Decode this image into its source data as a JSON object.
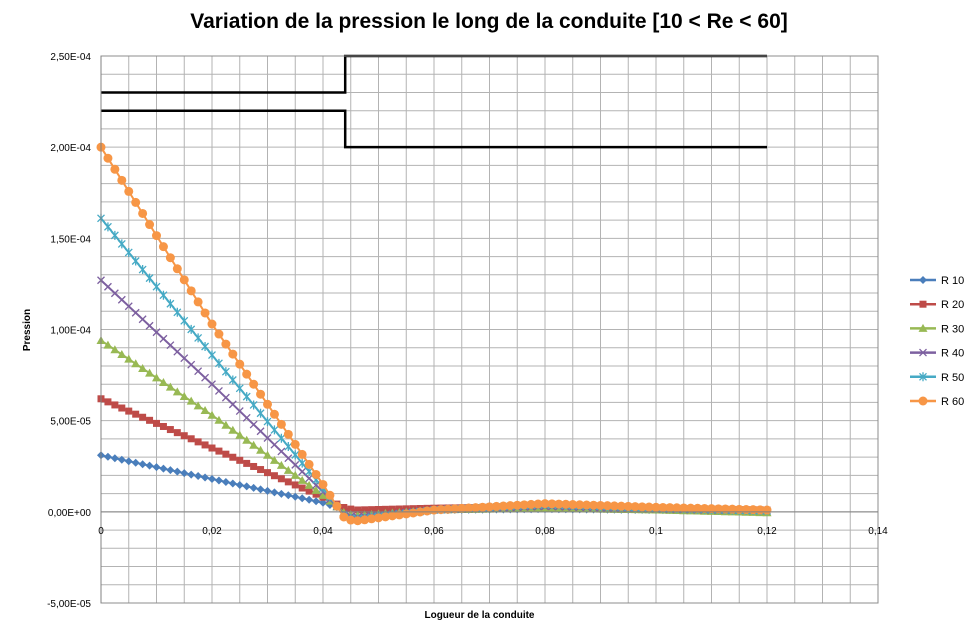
{
  "chart_data": {
    "type": "line",
    "title": "Variation de la pression le long de la conduite [10 < Re < 60]",
    "xlabel": "Logueur de la conduite",
    "ylabel": "Pression",
    "xlim": [
      0,
      0.14
    ],
    "ylim": [
      -5e-05,
      0.00025
    ],
    "x_ticks": [
      "0",
      "0,02",
      "0,04",
      "0,06",
      "0,08",
      "0,1",
      "0,12",
      "0,14"
    ],
    "y_ticks": [
      "2,50E-04",
      "2,00E-04",
      "1,50E-04",
      "1,00E-04",
      "5,00E-05",
      "0,00E+00",
      "-5,00E-05"
    ],
    "grid": true,
    "legend_position": "right",
    "outlines": [
      {
        "x": [
          0,
          0.044,
          0.044,
          0.12
        ],
        "y": [
          0.00023,
          0.00023,
          0.00025,
          0.00025
        ]
      },
      {
        "x": [
          0,
          0.044,
          0.044,
          0.12
        ],
        "y": [
          0.00022,
          0.00022,
          0.0002,
          0.0002
        ]
      }
    ],
    "series": [
      {
        "name": "R 10",
        "color": "#4a7ebb",
        "marker": "diamond",
        "x": [
          0,
          0.02,
          0.04,
          0.044,
          0.046,
          0.06,
          0.08,
          0.1,
          0.12
        ],
        "y": [
          3.1e-05,
          1.8e-05,
          5e-06,
          1e-06,
          5e-07,
          1e-06,
          1.5e-06,
          1e-06,
          5e-07
        ]
      },
      {
        "name": "R 20",
        "color": "#be4b48",
        "marker": "square",
        "x": [
          0,
          0.02,
          0.04,
          0.044,
          0.046,
          0.06,
          0.08,
          0.1,
          0.12
        ],
        "y": [
          6.2e-05,
          3.5e-05,
          8e-06,
          2e-06,
          1e-06,
          2e-06,
          3e-06,
          2e-06,
          1e-06
        ]
      },
      {
        "name": "R 30",
        "color": "#98b954",
        "marker": "triangle",
        "x": [
          0,
          0.02,
          0.04,
          0.044,
          0.046,
          0.06,
          0.08,
          0.1,
          0.12
        ],
        "y": [
          9.4e-05,
          5.3e-05,
          9e-06,
          -1e-06,
          -2e-06,
          1e-06,
          2e-06,
          1e-06,
          -5e-07
        ]
      },
      {
        "name": "R 40",
        "color": "#7d60a0",
        "marker": "x",
        "x": [
          0,
          0.02,
          0.04,
          0.044,
          0.046,
          0.06,
          0.08,
          0.1,
          0.12
        ],
        "y": [
          0.000127,
          7e-05,
          1.1e-05,
          -2e-06,
          -3e-06,
          1e-06,
          3e-06,
          1.5e-06,
          5e-07
        ]
      },
      {
        "name": "R 50",
        "color": "#46aac5",
        "marker": "star",
        "x": [
          0,
          0.02,
          0.04,
          0.044,
          0.046,
          0.06,
          0.08,
          0.1,
          0.12
        ],
        "y": [
          0.000161,
          8.6e-05,
          1.3e-05,
          -3e-06,
          -4e-06,
          1e-06,
          4e-06,
          2e-06,
          5e-07
        ]
      },
      {
        "name": "R 60",
        "color": "#f79646",
        "marker": "circle",
        "x": [
          0,
          0.02,
          0.04,
          0.044,
          0.046,
          0.06,
          0.08,
          0.1,
          0.12
        ],
        "y": [
          0.0002,
          0.000103,
          1.5e-05,
          -4e-06,
          -5e-06,
          1e-06,
          4.5e-06,
          2.5e-06,
          1e-06
        ]
      }
    ]
  }
}
